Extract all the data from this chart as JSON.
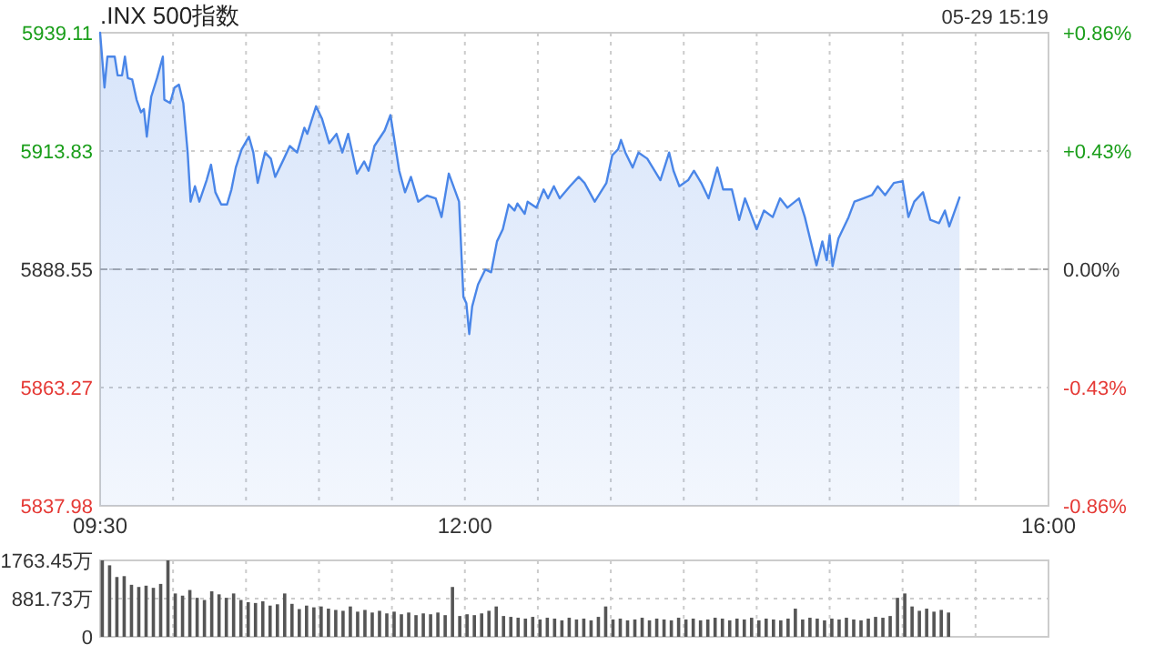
{
  "chart_data": [
    {
      "type": "area",
      "title": ".INX 500指数",
      "annotations": [
        "05-29 15:19"
      ],
      "x": [
        9.5,
        9.53,
        9.55,
        9.6,
        9.62,
        9.65,
        9.67,
        9.69,
        9.72,
        9.75,
        9.78,
        9.8,
        9.82,
        9.85,
        9.89,
        9.93,
        9.94,
        9.98,
        10.01,
        10.04,
        10.07,
        10.1,
        10.12,
        10.15,
        10.18,
        10.23,
        10.26,
        10.29,
        10.33,
        10.37,
        10.4,
        10.43,
        10.47,
        10.52,
        10.55,
        10.58,
        10.63,
        10.67,
        10.7,
        10.76,
        10.8,
        10.85,
        10.9,
        10.92,
        10.98,
        11.02,
        11.07,
        11.12,
        11.16,
        11.2,
        11.26,
        11.31,
        11.34,
        11.38,
        11.45,
        11.49,
        11.55,
        11.59,
        11.63,
        11.68,
        11.74,
        11.8,
        11.84,
        11.89,
        11.96,
        11.99,
        12.01,
        12.03,
        12.05,
        12.09,
        12.14,
        12.18,
        12.22,
        12.26,
        12.3,
        12.34,
        12.36,
        12.41,
        12.43,
        12.49,
        12.54,
        12.57,
        12.61,
        12.65,
        12.72,
        12.78,
        12.82,
        12.89,
        12.97,
        13.01,
        13.05,
        13.07,
        13.1,
        13.15,
        13.19,
        13.25,
        13.34,
        13.4,
        13.43,
        13.47,
        13.53,
        13.57,
        13.62,
        13.67,
        13.73,
        13.77,
        13.83,
        13.88,
        13.92,
        14.0,
        14.05,
        14.11,
        14.16,
        14.21,
        14.29,
        14.33,
        14.41,
        14.45,
        14.48,
        14.5,
        14.52,
        14.56,
        14.63,
        14.67,
        14.73,
        14.79,
        14.83,
        14.88,
        14.94,
        15.0,
        15.04,
        15.08,
        15.14,
        15.19,
        15.25,
        15.29,
        15.32,
        15.39
      ],
      "series": [
        {
          "color": "#4a86e8",
          "values": [
            5939.1,
            5927.4,
            5934.0,
            5934.0,
            5930.0,
            5930.0,
            5934.0,
            5929.4,
            5929.1,
            5924.8,
            5922.1,
            5922.8,
            5916.9,
            5925.4,
            5929.4,
            5934.0,
            5924.8,
            5924.1,
            5927.4,
            5928.0,
            5924.1,
            5913.5,
            5903.0,
            5906.3,
            5903.0,
            5907.6,
            5910.9,
            5905.0,
            5902.4,
            5902.4,
            5905.6,
            5910.3,
            5914.2,
            5916.9,
            5913.5,
            5907.0,
            5913.5,
            5912.2,
            5908.3,
            5912.2,
            5914.9,
            5913.5,
            5918.8,
            5917.5,
            5923.4,
            5920.8,
            5915.5,
            5917.5,
            5913.5,
            5917.5,
            5909.0,
            5911.6,
            5909.6,
            5914.9,
            5918.2,
            5921.5,
            5909.6,
            5905.0,
            5908.3,
            5903.0,
            5904.3,
            5903.7,
            5899.7,
            5909.0,
            5903.0,
            5882.6,
            5881.3,
            5874.7,
            5880.6,
            5885.3,
            5888.5,
            5887.9,
            5894.5,
            5897.1,
            5902.4,
            5901.1,
            5902.6,
            5900.4,
            5903.0,
            5901.7,
            5905.6,
            5903.7,
            5906.3,
            5903.7,
            5906.3,
            5908.3,
            5907.0,
            5903.0,
            5907.0,
            5912.9,
            5914.2,
            5916.2,
            5913.5,
            5910.3,
            5913.5,
            5912.2,
            5907.6,
            5913.5,
            5909.6,
            5906.3,
            5907.6,
            5909.6,
            5907.0,
            5903.7,
            5910.3,
            5905.6,
            5905.6,
            5899.1,
            5903.7,
            5897.1,
            5901.1,
            5899.7,
            5903.7,
            5901.7,
            5903.7,
            5899.7,
            5889.4,
            5894.5,
            5890.5,
            5895.8,
            5889.2,
            5895.1,
            5899.7,
            5903.0,
            5903.7,
            5904.4,
            5906.3,
            5904.4,
            5907.0,
            5907.4,
            5899.7,
            5903.0,
            5905.0,
            5899.1,
            5898.4,
            5901.1,
            5897.7,
            5903.9
          ]
        }
      ],
      "xlim": [
        9.5,
        16
      ],
      "xticks": [
        {
          "value": 9.5,
          "label": "09:30"
        },
        {
          "value": 10,
          "label": null
        },
        {
          "value": 10.5,
          "label": null
        },
        {
          "value": 11,
          "label": null
        },
        {
          "value": 11.5,
          "label": null
        },
        {
          "value": 12,
          "label": "12:00"
        },
        {
          "value": 12.5,
          "label": null
        },
        {
          "value": 13,
          "label": null
        },
        {
          "value": 13.5,
          "label": null
        },
        {
          "value": 14,
          "label": null
        },
        {
          "value": 14.5,
          "label": null
        },
        {
          "value": 15,
          "label": null
        },
        {
          "value": 15.5,
          "label": null
        },
        {
          "value": 16,
          "label": "16:00"
        }
      ],
      "ylim": [
        5837.98,
        5939.11
      ],
      "yticks": [
        5837.98,
        5863.27,
        5888.55,
        5913.83,
        5939.11
      ],
      "y2lim": [
        -0.86,
        0.86
      ],
      "y2ticks": [
        {
          "value": -0.86,
          "label": "-0.86%"
        },
        {
          "value": -0.43,
          "label": "-0.43%"
        },
        {
          "value": 0,
          "label": "0.00%"
        },
        {
          "value": 0.43,
          "label": "+0.43%"
        },
        {
          "value": 0.86,
          "label": "+0.86%"
        }
      ],
      "grid": true,
      "ref_lines": [
        {
          "axis": "y",
          "value": 5888.55,
          "color": "#aaaaaa",
          "line_style": "dashed"
        }
      ]
    },
    {
      "type": "bar",
      "color": "#555555",
      "x": [
        9.5,
        9.55,
        9.6,
        9.65,
        9.7,
        9.75,
        9.8,
        9.85,
        9.9,
        9.95,
        10.0,
        10.05,
        10.1,
        10.15,
        10.2,
        10.25,
        10.3,
        10.35,
        10.4,
        10.45,
        10.5,
        10.55,
        10.6,
        10.65,
        10.7,
        10.75,
        10.8,
        10.85,
        10.9,
        10.95,
        11.0,
        11.05,
        11.1,
        11.15,
        11.2,
        11.25,
        11.3,
        11.35,
        11.4,
        11.45,
        11.5,
        11.55,
        11.6,
        11.65,
        11.7,
        11.75,
        11.8,
        11.85,
        11.9,
        11.95,
        12.0,
        12.05,
        12.1,
        12.15,
        12.2,
        12.25,
        12.3,
        12.35,
        12.4,
        12.45,
        12.5,
        12.55,
        12.6,
        12.65,
        12.7,
        12.75,
        12.8,
        12.85,
        12.9,
        12.95,
        13.0,
        13.05,
        13.1,
        13.15,
        13.2,
        13.25,
        13.3,
        13.35,
        13.4,
        13.45,
        13.5,
        13.55,
        13.6,
        13.65,
        13.7,
        13.75,
        13.8,
        13.85,
        13.9,
        13.95,
        14.0,
        14.05,
        14.1,
        14.15,
        14.2,
        14.25,
        14.3,
        14.35,
        14.4,
        14.45,
        14.5,
        14.55,
        14.6,
        14.65,
        14.7,
        14.75,
        14.8,
        14.85,
        14.9,
        14.95,
        15.0,
        15.05,
        15.1,
        15.15,
        15.2,
        15.25,
        15.3
      ],
      "values": [
        1763,
        1650,
        1380,
        1400,
        1200,
        1150,
        1180,
        1130,
        1220,
        1763,
        1000,
        950,
        1080,
        900,
        850,
        1050,
        980,
        900,
        1000,
        850,
        800,
        780,
        820,
        720,
        750,
        1000,
        760,
        640,
        720,
        680,
        700,
        650,
        620,
        600,
        700,
        580,
        620,
        560,
        600,
        540,
        580,
        520,
        560,
        500,
        540,
        520,
        560,
        500,
        1150,
        480,
        520,
        500,
        540,
        600,
        700,
        480,
        460,
        440,
        420,
        460,
        400,
        440,
        420,
        380,
        440,
        400,
        420,
        380,
        460,
        700,
        400,
        420,
        380,
        400,
        440,
        380,
        420,
        400,
        380,
        440,
        400,
        420,
        380,
        400,
        440,
        420,
        380,
        420,
        400,
        440,
        380,
        420,
        400,
        380,
        420,
        650,
        400,
        440,
        420,
        380,
        420,
        400,
        440,
        400,
        380,
        420,
        460,
        440,
        480,
        900,
        1000,
        700,
        600,
        650,
        580,
        620,
        560
      ],
      "xlim": [
        9.5,
        16
      ],
      "xticks": [
        9.5,
        10,
        10.5,
        11,
        11.5,
        12,
        12.5,
        13,
        13.5,
        14,
        14.5,
        15,
        15.5,
        16
      ],
      "ylim": [
        0,
        1763.45
      ],
      "yticks": [
        0,
        {
          "value": 881.73,
          "label": "881.73万"
        },
        {
          "value": 1763.45,
          "label": "1763.45万"
        }
      ],
      "grid": true,
      "tick_labels": "y"
    }
  ]
}
